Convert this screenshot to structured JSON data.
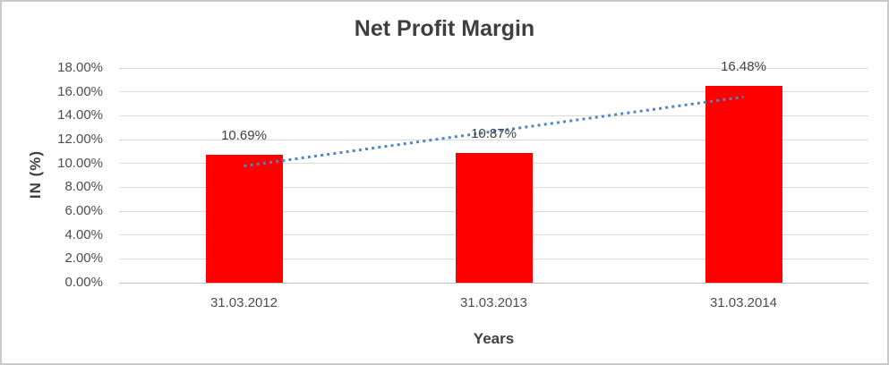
{
  "frame": {
    "border_color": "#c9c9c9",
    "background": "#ffffff"
  },
  "chart_data": {
    "type": "bar",
    "title": "Net Profit Margin",
    "xlabel": "Years",
    "ylabel": "IN (%)",
    "categories": [
      "31.03.2012",
      "31.03.2013",
      "31.03.2014"
    ],
    "values": [
      10.69,
      10.87,
      16.48
    ],
    "data_labels": [
      "10.69%",
      "10.87%",
      "16.48%"
    ],
    "ylim": [
      0,
      18
    ],
    "ytick_step": 2,
    "ytick_labels": [
      "0.00%",
      "2.00%",
      "4.00%",
      "6.00%",
      "8.00%",
      "10.00%",
      "12.00%",
      "14.00%",
      "16.00%",
      "18.00%"
    ],
    "grid": true,
    "legend": "none",
    "bar_color": "#ff0000",
    "trendline": {
      "type": "linear",
      "style": "dotted",
      "color": "#4e86c6"
    },
    "colors": {
      "gridline": "#d9d9d9",
      "axis_line": "#c0c0c0",
      "title": "#3f3f3f",
      "tick_text": "#4d4d4d",
      "data_label_text": "#404040"
    }
  }
}
